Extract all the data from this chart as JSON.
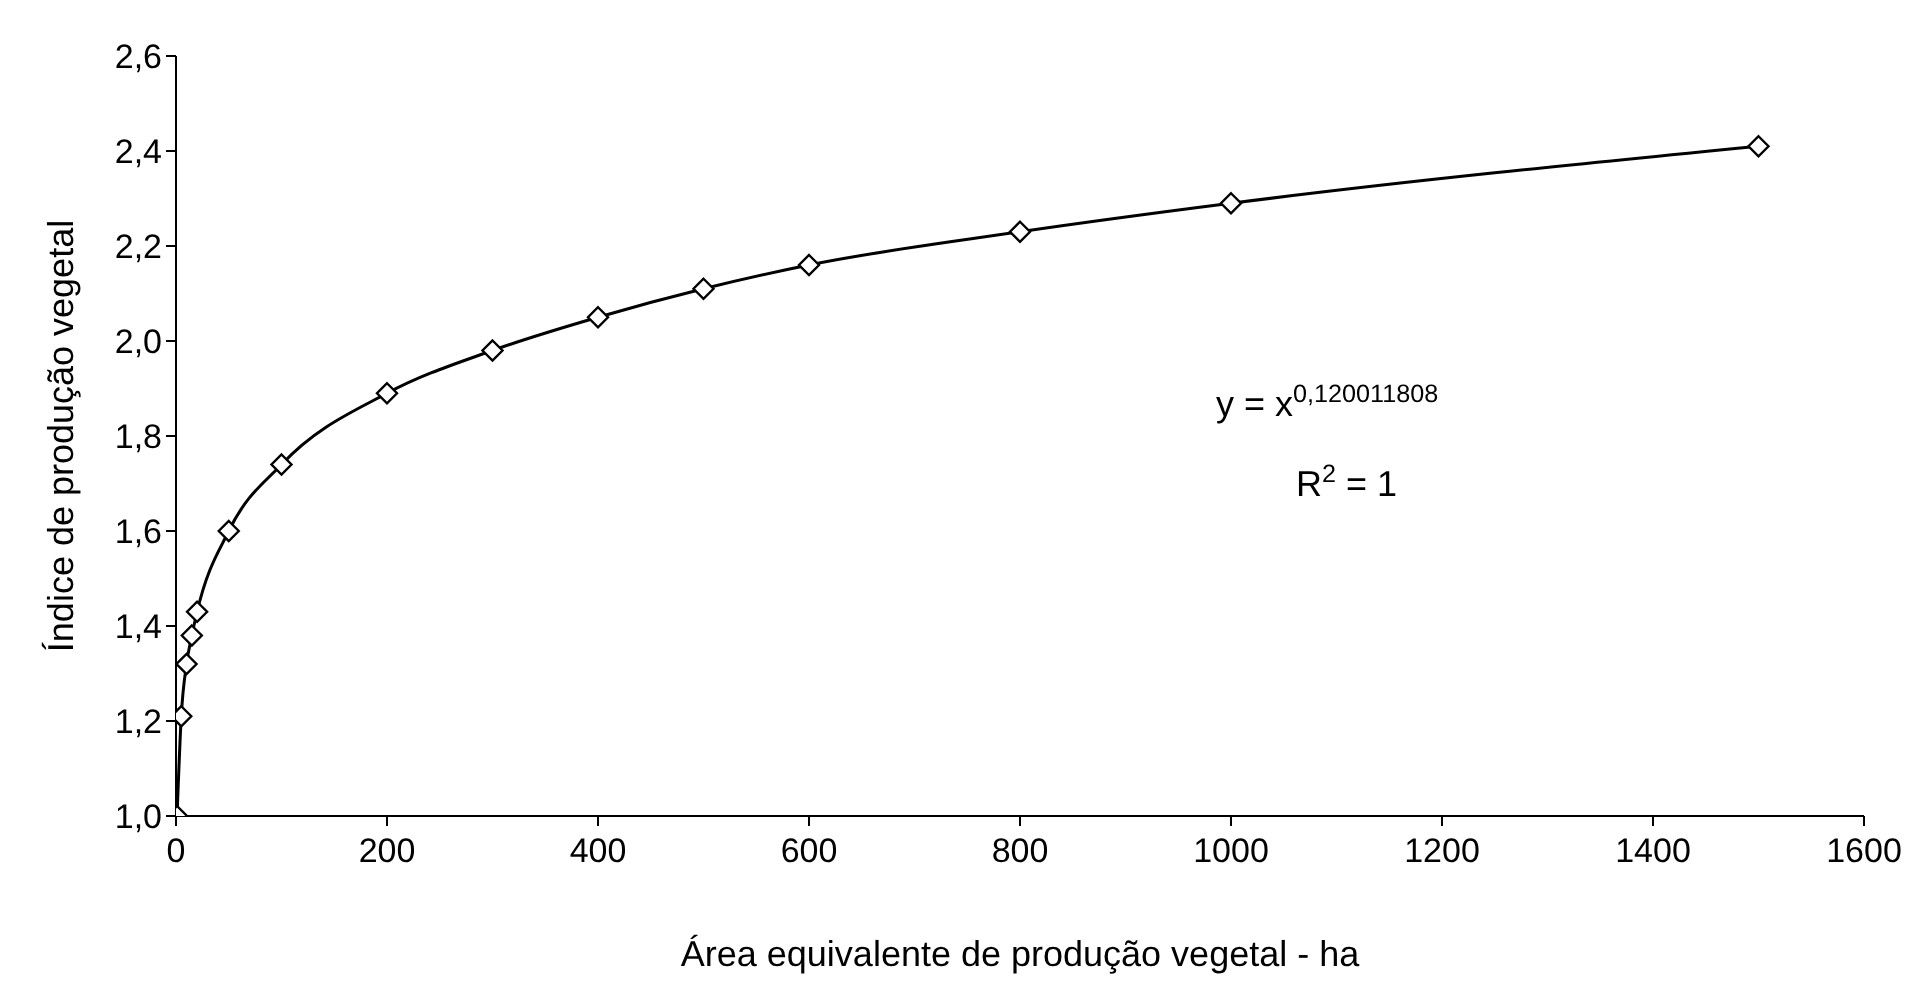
{
  "chart_data": {
    "type": "line",
    "xlabel": "Área equivalente de produção vegetal - ha",
    "ylabel": "Índice de produção vegetal",
    "x": [
      1,
      5,
      10,
      15,
      20,
      50,
      100,
      200,
      300,
      400,
      500,
      600,
      800,
      1000,
      1500
    ],
    "series": [
      {
        "color": "#000000",
        "values": [
          1.0,
          1.21,
          1.32,
          1.38,
          1.43,
          1.6,
          1.74,
          1.89,
          1.98,
          2.05,
          2.11,
          2.16,
          2.23,
          2.29,
          2.41
        ]
      }
    ],
    "xlim": [
      0,
      1600
    ],
    "xticks": [
      0,
      200,
      400,
      600,
      800,
      1000,
      1200,
      1400,
      1600
    ],
    "ylim": [
      1.0,
      2.6
    ],
    "yticks": [
      {
        "value": 1.0,
        "label": "1,0"
      },
      {
        "value": 1.2,
        "label": "1,2"
      },
      {
        "value": 1.4,
        "label": "1,4"
      },
      {
        "value": 1.6,
        "label": "1,6"
      },
      {
        "value": 1.8,
        "label": "1,8"
      },
      {
        "value": 2.0,
        "label": "2,0"
      },
      {
        "value": 2.2,
        "label": "2,2"
      },
      {
        "value": 2.4,
        "label": "2,4"
      },
      {
        "value": 2.6,
        "label": "2,6"
      }
    ],
    "annotations": [
      "y = x$^{0,120011808}$",
      "R$^{2}$ = 1"
    ],
    "marker": "diamond",
    "line_style": "solid"
  }
}
